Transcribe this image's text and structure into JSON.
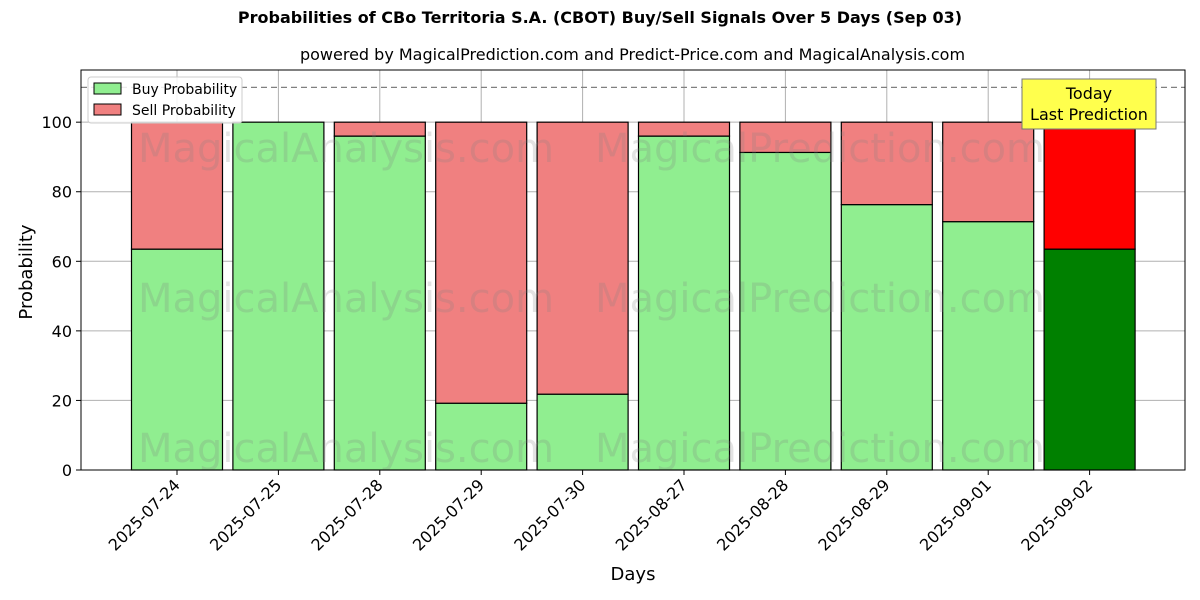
{
  "chart_data": {
    "type": "bar",
    "stacked": true,
    "title": "Probabilities of CBo Territoria S.A. (CBOT) Buy/Sell Signals Over 5 Days (Sep 03)",
    "subtitle": "powered by MagicalPrediction.com and Predict-Price.com and MagicalAnalysis.com",
    "xlabel": "Days",
    "ylabel": "Probability",
    "ylim": [
      0,
      115
    ],
    "yticks": [
      0,
      20,
      40,
      60,
      80,
      100
    ],
    "grid": true,
    "legend_position": "top-left",
    "reference_line": 110,
    "categories": [
      "2025-07-24",
      "2025-07-25",
      "2025-07-28",
      "2025-07-29",
      "2025-07-30",
      "2025-08-27",
      "2025-08-28",
      "2025-08-29",
      "2025-09-01",
      "2025-09-02"
    ],
    "series": [
      {
        "name": "Buy Probability",
        "values": [
          63.5,
          100,
          96,
          19.2,
          21.8,
          96,
          91.3,
          76.3,
          71.4,
          63.5
        ],
        "color": "#90ee90",
        "highlight_color": "#008000"
      },
      {
        "name": "Sell Probability",
        "values": [
          36.5,
          0,
          4,
          80.8,
          78.2,
          4,
          8.7,
          23.7,
          28.6,
          36.5
        ],
        "color": "#f08080",
        "highlight_color": "#ff0000"
      }
    ],
    "annotation": {
      "line1": "Today",
      "line2": "Last Prediction",
      "background": "#ffff4d"
    },
    "watermarks": [
      "MagicalAnalysis.com",
      "MagicalPrediction.com"
    ]
  }
}
